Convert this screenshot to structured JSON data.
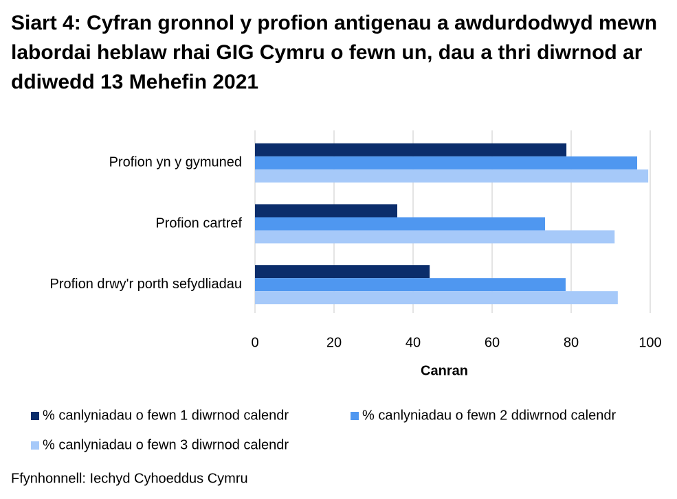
{
  "chart_data": {
    "type": "bar",
    "orientation": "horizontal",
    "title": "Siart 4: Cyfran gronnol y profion antigenau a awdurdodwyd mewn labordai heblaw rhai GIG Cymru o fewn un, dau a thri diwrnod ar ddiwedd 13 Mehefin 2021",
    "categories": [
      "Profion yn y gymuned",
      "Profion cartref",
      "Profion drwy'r porth sefydliadau"
    ],
    "series": [
      {
        "name": "% canlyniadau o fewn 1 diwrnod calendr",
        "color": "#0b2d6b",
        "values": [
          78.8,
          36.0,
          44.2
        ]
      },
      {
        "name": "% canlyniadau o fewn 2 ddiwrnod calendr",
        "color": "#4f97f0",
        "values": [
          96.7,
          73.4,
          78.6
        ]
      },
      {
        "name": "% canlyniadau o fewn 3 diwrnod calendr",
        "color": "#a6c9f9",
        "values": [
          99.5,
          91.0,
          91.8
        ]
      }
    ],
    "x_label": "Canran",
    "xlim": [
      0,
      100
    ],
    "xticks": [
      0,
      20,
      40,
      60,
      80,
      100
    ],
    "grid": true,
    "legend_position": "bottom",
    "source": "Ffynhonnell: Iechyd Cyhoeddus Cymru"
  }
}
